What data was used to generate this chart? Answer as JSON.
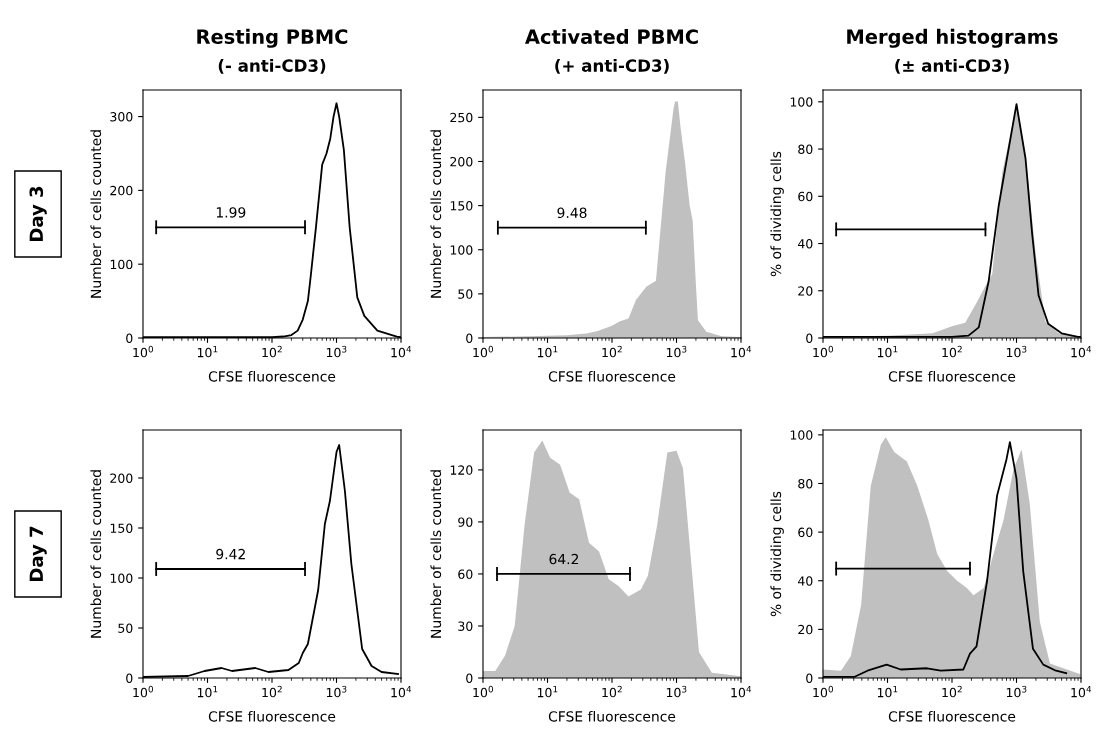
{
  "chart_data": [
    {
      "type": "line",
      "title": "Resting PBMC",
      "subtitle": "(- anti-CD3)",
      "xlabel": "CFSE fluorescence",
      "ylabel": "Number of cells counted",
      "log": "x",
      "xlim": [
        1,
        10000
      ],
      "xticks": [
        {
          "value": 1,
          "label": "10$^{0}$"
        },
        {
          "value": 10,
          "label": "10$^{1}$"
        },
        {
          "value": 100,
          "label": "10$^{2}$"
        },
        {
          "value": 1000,
          "label": "10$^{3}$"
        },
        {
          "value": 10000,
          "label": "10$^{4}$"
        }
      ],
      "ylim": [
        0,
        336
      ],
      "yticks": [
        0,
        100,
        200,
        300
      ],
      "grid": false,
      "annotations": [
        "Day 3",
        {
          "text": "1.99",
          "x": 23,
          "y": 150
        }
      ],
      "series": [
        {
          "color": "#000000",
          "x": [
            1,
            2,
            5,
            10,
            20,
            50,
            100,
            150,
            200,
            250,
            300,
            360,
            400,
            480,
            600,
            700,
            800,
            900,
            1000,
            1100,
            1300,
            1600,
            2100,
            2700,
            4300,
            8600,
            10000
          ],
          "values": [
            1,
            1,
            1,
            1,
            1,
            1,
            1,
            2,
            4,
            10,
            25,
            50,
            85,
            150,
            235,
            250,
            270,
            300,
            318,
            300,
            255,
            150,
            55,
            30,
            10,
            2,
            1
          ]
        },
        {
          "type": "line",
          "color": "#000000",
          "x": [
            1.6,
            325
          ],
          "values": [
            150,
            150
          ]
        }
      ]
    },
    {
      "type": "area",
      "title": "Activated PBMC",
      "subtitle": "(+ anti-CD3)",
      "xlabel": "CFSE fluorescence",
      "ylabel": "Number of cells counted",
      "log": "x",
      "xlim": [
        1,
        10000
      ],
      "xticks": [
        {
          "value": 1,
          "label": "10$^{0}$"
        },
        {
          "value": 10,
          "label": "10$^{1}$"
        },
        {
          "value": 100,
          "label": "10$^{2}$"
        },
        {
          "value": 1000,
          "label": "10$^{3}$"
        },
        {
          "value": 10000,
          "label": "10$^{4}$"
        }
      ],
      "ylim": [
        0,
        281
      ],
      "yticks": [
        0,
        50,
        100,
        150,
        200,
        250
      ],
      "grid": false,
      "annotations": [
        {
          "text": "9.48",
          "x": 24,
          "y": 125
        }
      ],
      "series": [
        {
          "color": "#c0c0c0",
          "x": [
            1,
            5,
            20,
            40,
            60,
            100,
            133,
            180,
            235,
            340,
            480,
            560,
            680,
            800,
            900,
            950,
            1050,
            1150,
            1350,
            1600,
            1780,
            2000,
            2150,
            2900,
            5000,
            10000
          ],
          "values": [
            1,
            2,
            3,
            5,
            8,
            14,
            19,
            22,
            43,
            58,
            65,
            120,
            189,
            230,
            260,
            268,
            268,
            240,
            200,
            150,
            133,
            60,
            20,
            7,
            2,
            1
          ]
        },
        {
          "type": "line",
          "color": "#000000",
          "x": [
            1.7,
            335
          ],
          "values": [
            125,
            125
          ]
        }
      ]
    },
    {
      "type": "area",
      "title": "Merged histograms",
      "subtitle": "(± anti-CD3)",
      "xlabel": "CFSE fluorescence",
      "ylabel": "% of dividing cells",
      "log": "x",
      "xlim": [
        1,
        10000
      ],
      "xticks": [
        {
          "value": 1,
          "label": "10$^{0}$"
        },
        {
          "value": 10,
          "label": "10$^{1}$"
        },
        {
          "value": 100,
          "label": "10$^{2}$"
        },
        {
          "value": 1000,
          "label": "10$^{3}$"
        },
        {
          "value": 10000,
          "label": "10$^{4}$"
        }
      ],
      "ylim": [
        0,
        105
      ],
      "yticks": [
        0,
        20,
        40,
        60,
        80,
        100
      ],
      "grid": false,
      "series": [
        {
          "color": "#c0c0c0",
          "x": [
            1,
            10,
            50,
            100,
            160,
            230,
            330,
            420,
            600,
            760,
            1000,
            1380,
            2000,
            2800,
            4500,
            10000
          ],
          "values": [
            0.5,
            1,
            2,
            5,
            6.5,
            14,
            22,
            27,
            70,
            83,
            99,
            77,
            35,
            7,
            2,
            0.5
          ]
        },
        {
          "type": "line",
          "color": "#000000",
          "x": [
            1,
            100,
            180,
            260,
            370,
            530,
            680,
            1000,
            1380,
            1750,
            2200,
            3100,
            5000,
            9000,
            10000
          ],
          "values": [
            0.5,
            0.5,
            1,
            4.5,
            24,
            56,
            73,
            99,
            76,
            44,
            18,
            6,
            2,
            0.5,
            0.5
          ]
        },
        {
          "type": "line",
          "color": "#000000",
          "x": [
            1.6,
            330
          ],
          "values": [
            46,
            46
          ]
        }
      ]
    },
    {
      "type": "line",
      "xlabel": "CFSE fluorescence",
      "ylabel": "Number of cells counted",
      "log": "x",
      "xlim": [
        1,
        10000
      ],
      "xticks": [
        {
          "value": 1,
          "label": "10$^{0}$"
        },
        {
          "value": 10,
          "label": "10$^{1}$"
        },
        {
          "value": 100,
          "label": "10$^{2}$"
        },
        {
          "value": 1000,
          "label": "10$^{3}$"
        },
        {
          "value": 10000,
          "label": "10$^{4}$"
        }
      ],
      "ylim": [
        0,
        248
      ],
      "yticks": [
        0,
        50,
        100,
        150,
        200
      ],
      "grid": false,
      "annotations": [
        "Day 7",
        {
          "text": "9.42",
          "x": 23,
          "y": 109
        }
      ],
      "series": [
        {
          "color": "#000000",
          "x": [
            1,
            5,
            9,
            16.5,
            24,
            55,
            88,
            180,
            260,
            300,
            360,
            520,
            660,
            790,
            1000,
            1100,
            1350,
            1700,
            2500,
            3500,
            5000,
            9000
          ],
          "values": [
            1,
            2,
            7,
            10,
            7,
            10,
            6,
            8,
            15,
            25,
            34,
            88,
            154,
            177,
            226,
            233,
            187,
            114,
            29,
            12,
            6,
            4
          ]
        },
        {
          "type": "line",
          "color": "#000000",
          "x": [
            1.6,
            325
          ],
          "values": [
            109,
            109
          ]
        }
      ]
    },
    {
      "type": "area",
      "xlabel": "CFSE fluorescence",
      "ylabel": "Number of cells counted",
      "log": "x",
      "xlim": [
        1,
        10000
      ],
      "xticks": [
        {
          "value": 1,
          "label": "10$^{0}$"
        },
        {
          "value": 10,
          "label": "10$^{1}$"
        },
        {
          "value": 100,
          "label": "10$^{2}$"
        },
        {
          "value": 1000,
          "label": "10$^{3}$"
        },
        {
          "value": 10000,
          "label": "10$^{4}$"
        }
      ],
      "ylim": [
        0,
        143
      ],
      "yticks": [
        0,
        30,
        60,
        90,
        120
      ],
      "grid": false,
      "annotations": [
        {
          "text": "64.2",
          "x": 18,
          "y": 60
        }
      ],
      "series": [
        {
          "color": "#c0c0c0",
          "x": [
            1,
            1.55,
            2.2,
            3.1,
            4.4,
            6.2,
            8.3,
            11,
            15.7,
            22,
            31,
            44,
            63,
            89,
            126,
            180,
            280,
            360,
            500,
            720,
            1000,
            1260,
            1590,
            2230,
            3540,
            10000
          ],
          "values": [
            4,
            4,
            13,
            30,
            88,
            130,
            137,
            127,
            123,
            107,
            103,
            78,
            73,
            57,
            53,
            47,
            51,
            59,
            88,
            130,
            131,
            121,
            78,
            15,
            3,
            1
          ]
        },
        {
          "type": "line",
          "color": "#000000",
          "x": [
            1.65,
            190
          ],
          "values": [
            60,
            60
          ]
        }
      ]
    },
    {
      "type": "area",
      "xlabel": "CFSE fluorescence",
      "ylabel": "% of dividing cells",
      "log": "x",
      "xlim": [
        1,
        10000
      ],
      "xticks": [
        {
          "value": 1,
          "label": "10$^{0}$"
        },
        {
          "value": 10,
          "label": "10$^{1}$"
        },
        {
          "value": 100,
          "label": "10$^{2}$"
        },
        {
          "value": 1000,
          "label": "10$^{3}$"
        },
        {
          "value": 10000,
          "label": "10$^{4}$"
        }
      ],
      "ylim": [
        0,
        102
      ],
      "yticks": [
        0,
        20,
        40,
        60,
        80,
        100
      ],
      "grid": false,
      "series": [
        {
          "color": "#c0c0c0",
          "x": [
            1,
            1.9,
            2.7,
            3.9,
            5.5,
            7.9,
            9.4,
            12.7,
            20,
            29,
            43,
            59,
            84,
            120,
            170,
            215,
            310,
            440,
            630,
            900,
            1200,
            1600,
            2300,
            3300,
            9800
          ],
          "values": [
            3.5,
            3,
            9,
            30,
            79,
            96,
            99,
            93,
            89,
            79,
            65,
            51,
            44,
            40,
            37,
            34,
            37,
            51,
            65,
            86,
            94,
            72,
            23,
            6,
            1.5
          ]
        },
        {
          "type": "line",
          "color": "#000000",
          "x": [
            1,
            3.1,
            4.9,
            9.7,
            16,
            41,
            67,
            150,
            190,
            240,
            350,
            500,
            700,
            790,
            1000,
            1270,
            1800,
            2600,
            4100,
            5900
          ],
          "values": [
            0.5,
            0.5,
            3,
            5.5,
            3.5,
            4,
            3,
            3.5,
            10,
            13,
            40,
            75,
            90,
            97,
            82,
            44,
            12,
            5.5,
            3,
            2
          ]
        },
        {
          "type": "line",
          "color": "#000000",
          "x": [
            1.6,
            190
          ],
          "values": [
            45,
            45
          ]
        }
      ]
    }
  ]
}
